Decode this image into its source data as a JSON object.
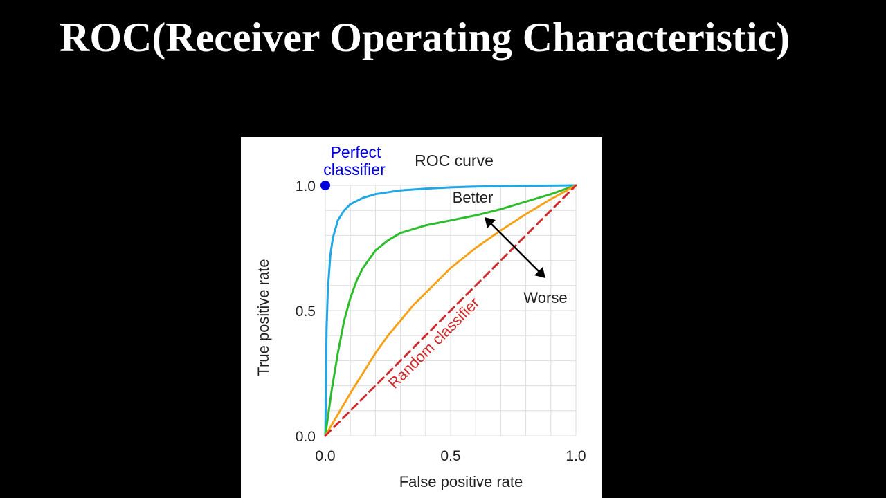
{
  "slide": {
    "title": "ROC(Receiver Operating Characteristic)"
  },
  "colors": {
    "background": "#000000",
    "title_text": "#ffffff",
    "panel": "#ffffff",
    "grid": "#dedede",
    "perfect": "#0000dd",
    "curve_best": "#22a7e6",
    "curve_better": "#2cbc2c",
    "curve_ok": "#f5a21a",
    "random": "#d22a2a",
    "text": "#222222"
  },
  "chart_data": {
    "type": "line",
    "title": "ROC curve",
    "xlabel": "False positive rate",
    "ylabel": "True positive rate",
    "xlim": [
      0,
      1
    ],
    "ylim": [
      0,
      1
    ],
    "grid": true,
    "x_ticks": [
      "0.0",
      "0.5",
      "1.0"
    ],
    "y_ticks": [
      "0.0",
      "0.5",
      "1.0"
    ],
    "perfect_point": {
      "label_line1": "Perfect",
      "label_line2": "classifier",
      "x": 0,
      "y": 1
    },
    "series": [
      {
        "key": "best",
        "color": "#22a7e6",
        "x": [
          0,
          0.005,
          0.01,
          0.02,
          0.03,
          0.05,
          0.075,
          0.1,
          0.15,
          0.2,
          0.3,
          0.4,
          0.5,
          0.6,
          0.7,
          0.8,
          0.9,
          1.0
        ],
        "y": [
          0,
          0.42,
          0.58,
          0.72,
          0.79,
          0.86,
          0.9,
          0.925,
          0.95,
          0.965,
          0.98,
          0.987,
          0.992,
          0.995,
          0.997,
          0.998,
          0.999,
          1.0
        ]
      },
      {
        "key": "better",
        "color": "#2cbc2c",
        "x": [
          0,
          0.025,
          0.05,
          0.075,
          0.1,
          0.125,
          0.15,
          0.2,
          0.25,
          0.3,
          0.4,
          0.5,
          0.6,
          0.7,
          0.8,
          0.9,
          1.0
        ],
        "y": [
          0,
          0.18,
          0.33,
          0.46,
          0.55,
          0.62,
          0.67,
          0.74,
          0.78,
          0.81,
          0.84,
          0.86,
          0.88,
          0.905,
          0.935,
          0.965,
          1.0
        ]
      },
      {
        "key": "ok",
        "color": "#f5a21a",
        "x": [
          0,
          0.05,
          0.1,
          0.15,
          0.2,
          0.25,
          0.3,
          0.35,
          0.4,
          0.45,
          0.5,
          0.6,
          0.7,
          0.8,
          0.9,
          1.0
        ],
        "y": [
          0,
          0.085,
          0.17,
          0.25,
          0.33,
          0.4,
          0.46,
          0.52,
          0.57,
          0.62,
          0.67,
          0.75,
          0.82,
          0.885,
          0.945,
          1.0
        ]
      },
      {
        "key": "random",
        "color": "#d22a2a",
        "dashed": true,
        "name": "Random classifier",
        "x": [
          0,
          1
        ],
        "y": [
          0,
          1
        ]
      }
    ],
    "annotations": {
      "better": "Better",
      "worse": "Worse"
    }
  }
}
